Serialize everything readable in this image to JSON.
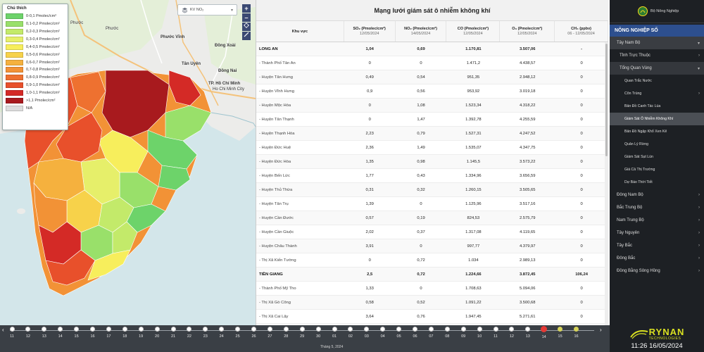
{
  "map": {
    "layer_select": "KV NO₂",
    "zoom_in": "+",
    "zoom_out": "–",
    "city_labels": [
      "Phước Vĩnh",
      "Đồng Xoài",
      "Tân Uyên",
      "Đồng Nai",
      "TP. Hồ Chí Minh",
      "Ho Chi Minh City",
      "Phước",
      "Phước"
    ],
    "legend": {
      "title": "Chú thích",
      "items": [
        {
          "label": "0-0,1 Pmolec/cm²",
          "color": "#6dd36a"
        },
        {
          "label": "0,1-0,2 Pmolec/cm²",
          "color": "#99e06a"
        },
        {
          "label": "0,2-0,3 Pmolec/cm²",
          "color": "#c3ea6a"
        },
        {
          "label": "0,3-0,4 Pmolec/cm²",
          "color": "#e6ef6a"
        },
        {
          "label": "0,4-0,5 Pmolec/cm²",
          "color": "#f7ee5c"
        },
        {
          "label": "0,5-0,6 Pmolec/cm²",
          "color": "#f7d24a"
        },
        {
          "label": "0,6-0,7 Pmolec/cm²",
          "color": "#f5b13e"
        },
        {
          "label": "0,7-0,8 Pmolec/cm²",
          "color": "#f29236"
        },
        {
          "label": "0,8-0,9 Pmolec/cm²",
          "color": "#ee7130"
        },
        {
          "label": "0,9-1,0 Pmolec/cm²",
          "color": "#e8502b"
        },
        {
          "label": "1,0-1,1 Pmolec/cm²",
          "color": "#d42a26"
        },
        {
          "label": ">1,1 Pmolec/cm²",
          "color": "#a81a1e"
        },
        {
          "label": "N/A",
          "color": "#dddddd"
        }
      ]
    }
  },
  "table": {
    "title": "Mạng lưới giám sát ô nhiễm không khí",
    "headers": [
      {
        "label": "Khu vực",
        "date": ""
      },
      {
        "label": "SO₂ (Pmolec/cm²)",
        "date": "12/05/2024"
      },
      {
        "label": "NO₂ (Pmolec/cm²)",
        "date": "14/05/2024"
      },
      {
        "label": "CO (Pmolec/cm²)",
        "date": "12/05/2024"
      },
      {
        "label": "O₃ (Pmolec/cm²)",
        "date": "12/05/2024"
      },
      {
        "label": "CH₄ (ppbv)",
        "date": "06 - 12/05/2024"
      }
    ],
    "rows": [
      {
        "name": "LONG AN",
        "so2": "1,04",
        "no2": "0,69",
        "co": "1.170,81",
        "o3": "3.507,06",
        "ch4": "-",
        "province": true
      },
      {
        "name": "- Thành Phố Tân An",
        "so2": "0",
        "no2": "0",
        "co": "1.471,2",
        "o3": "4.438,57",
        "ch4": "0",
        "province": false
      },
      {
        "name": "- Huyện Tân Hưng",
        "so2": "0,49",
        "no2": "0,54",
        "co": "951,35",
        "o3": "2.948,12",
        "ch4": "0",
        "province": false
      },
      {
        "name": "- Huyện Vĩnh Hưng",
        "so2": "0,9",
        "no2": "0,56",
        "co": "953,92",
        "o3": "3.019,18",
        "ch4": "0",
        "province": false
      },
      {
        "name": "- Huyện Mộc Hóa",
        "so2": "0",
        "no2": "1,08",
        "co": "1.523,34",
        "o3": "4.318,22",
        "ch4": "0",
        "province": false
      },
      {
        "name": "- Huyện Tân Thạnh",
        "so2": "0",
        "no2": "1,47",
        "co": "1.392,78",
        "o3": "4.255,59",
        "ch4": "0",
        "province": false
      },
      {
        "name": "- Huyện Thạnh Hóa",
        "so2": "2,23",
        "no2": "0,79",
        "co": "1.527,31",
        "o3": "4.247,52",
        "ch4": "0",
        "province": false
      },
      {
        "name": "- Huyện Đức Huệ",
        "so2": "2,36",
        "no2": "1,49",
        "co": "1.535,07",
        "o3": "4.347,75",
        "ch4": "0",
        "province": false
      },
      {
        "name": "- Huyện Đức Hòa",
        "so2": "1,35",
        "no2": "0,98",
        "co": "1.145,5",
        "o3": "3.573,22",
        "ch4": "0",
        "province": false
      },
      {
        "name": "- Huyện Bến Lức",
        "so2": "1,77",
        "no2": "0,43",
        "co": "1.334,96",
        "o3": "3.656,59",
        "ch4": "0",
        "province": false
      },
      {
        "name": "- Huyện Thủ Thừa",
        "so2": "0,31",
        "no2": "0,32",
        "co": "1.260,15",
        "o3": "3.505,65",
        "ch4": "0",
        "province": false
      },
      {
        "name": "- Huyện Tân Trụ",
        "so2": "1,39",
        "no2": "0",
        "co": "1.125,96",
        "o3": "3.517,16",
        "ch4": "0",
        "province": false
      },
      {
        "name": "- Huyện Cần Đước",
        "so2": "0,57",
        "no2": "0,19",
        "co": "824,53",
        "o3": "2.575,79",
        "ch4": "0",
        "province": false
      },
      {
        "name": "- Huyện Cần Giuộc",
        "so2": "2,02",
        "no2": "0,37",
        "co": "1.317,08",
        "o3": "4.119,65",
        "ch4": "0",
        "province": false
      },
      {
        "name": "- Huyện Châu Thành",
        "so2": "3,91",
        "no2": "0",
        "co": "997,77",
        "o3": "4.379,97",
        "ch4": "0",
        "province": false
      },
      {
        "name": "- Thị Xã Kiến Tường",
        "so2": "0",
        "no2": "0,72",
        "co": "1.034",
        "o3": "2.989,13",
        "ch4": "0",
        "province": false
      },
      {
        "name": "TIỀN GIANG",
        "so2": "2,5",
        "no2": "0,72",
        "co": "1.224,66",
        "o3": "3.872,45",
        "ch4": "106,24",
        "province": true
      },
      {
        "name": "- Thành Phố Mỹ Tho",
        "so2": "1,33",
        "no2": "0",
        "co": "1.708,63",
        "o3": "5.094,06",
        "ch4": "0",
        "province": false
      },
      {
        "name": "- Thị Xã Gò Công",
        "so2": "0,58",
        "no2": "0,52",
        "co": "1.091,22",
        "o3": "3.500,68",
        "ch4": "0",
        "province": false
      },
      {
        "name": "- Thị Xã Cai Lậy",
        "so2": "3,64",
        "no2": "0,76",
        "co": "1.947,45",
        "o3": "5.271,61",
        "ch4": "0",
        "province": false
      }
    ]
  },
  "sidebar": {
    "ministry": "Bộ Nông Nghiệp",
    "section": "NÔNG NGHIỆP SỐ",
    "items": [
      {
        "label": "Tây Nam Bộ",
        "level": 1,
        "arrow": "▾",
        "state": "open"
      },
      {
        "label": "Tỉnh Trực Thuộc",
        "level": 2,
        "arrow": "›",
        "state": ""
      },
      {
        "label": "Tổng Quan Vùng",
        "level": 2,
        "arrow": "▾",
        "state": "open2"
      },
      {
        "label": "Quan Trắc Nước",
        "level": 3,
        "arrow": "",
        "state": ""
      },
      {
        "label": "Côn Trùng",
        "level": 3,
        "arrow": "›",
        "state": ""
      },
      {
        "label": "Bản Đồ Canh Tác Lúa",
        "level": 3,
        "arrow": "",
        "state": ""
      },
      {
        "label": "Giám Sát Ô Nhiễm Không Khí",
        "level": 3,
        "arrow": "",
        "state": "active"
      },
      {
        "label": "Bản Đồ Ngập Khổ Xen Kẽ",
        "level": 3,
        "arrow": "",
        "state": ""
      },
      {
        "label": "Quản Lý Rừng",
        "level": 3,
        "arrow": "",
        "state": ""
      },
      {
        "label": "Giám Sát Sụt Lún",
        "level": 3,
        "arrow": "",
        "state": ""
      },
      {
        "label": "Giá Cả Thị Trường",
        "level": 3,
        "arrow": "",
        "state": ""
      },
      {
        "label": "Dự Báo Thời Tiết",
        "level": 3,
        "arrow": "",
        "state": ""
      },
      {
        "label": "Đông Nam Bộ",
        "level": 1,
        "arrow": "›",
        "state": ""
      },
      {
        "label": "Bắc Trung Bộ",
        "level": 1,
        "arrow": "›",
        "state": ""
      },
      {
        "label": "Nam Trung Bộ",
        "level": 1,
        "arrow": "›",
        "state": ""
      },
      {
        "label": "Tây Nguyên",
        "level": 1,
        "arrow": "›",
        "state": ""
      },
      {
        "label": "Tây Bắc",
        "level": 1,
        "arrow": "›",
        "state": ""
      },
      {
        "label": "Đông Bắc",
        "level": 1,
        "arrow": "›",
        "state": ""
      },
      {
        "label": "Đồng Bằng Sông Hồng",
        "level": 1,
        "arrow": "›",
        "state": ""
      }
    ],
    "brand_name": "RYNAN",
    "brand_sub": "TECHNOLOGIES",
    "clock": "11:26 16/05/2024"
  },
  "timeline": {
    "month_label": "Tháng 5, 2024",
    "prev": "‹",
    "next": "›",
    "days": [
      {
        "day": "11",
        "state": ""
      },
      {
        "day": "12",
        "state": ""
      },
      {
        "day": "13",
        "state": ""
      },
      {
        "day": "14",
        "state": ""
      },
      {
        "day": "15",
        "state": ""
      },
      {
        "day": "16",
        "state": ""
      },
      {
        "day": "17",
        "state": ""
      },
      {
        "day": "18",
        "state": ""
      },
      {
        "day": "19",
        "state": ""
      },
      {
        "day": "20",
        "state": ""
      },
      {
        "day": "21",
        "state": ""
      },
      {
        "day": "22",
        "state": ""
      },
      {
        "day": "23",
        "state": ""
      },
      {
        "day": "24",
        "state": ""
      },
      {
        "day": "25",
        "state": ""
      },
      {
        "day": "26",
        "state": ""
      },
      {
        "day": "27",
        "state": ""
      },
      {
        "day": "28",
        "state": ""
      },
      {
        "day": "29",
        "state": ""
      },
      {
        "day": "30",
        "state": ""
      },
      {
        "day": "01",
        "state": ""
      },
      {
        "day": "02",
        "state": ""
      },
      {
        "day": "03",
        "state": ""
      },
      {
        "day": "04",
        "state": ""
      },
      {
        "day": "05",
        "state": ""
      },
      {
        "day": "06",
        "state": ""
      },
      {
        "day": "07",
        "state": ""
      },
      {
        "day": "08",
        "state": ""
      },
      {
        "day": "09",
        "state": ""
      },
      {
        "day": "10",
        "state": ""
      },
      {
        "day": "11",
        "state": ""
      },
      {
        "day": "12",
        "state": ""
      },
      {
        "day": "13",
        "state": ""
      },
      {
        "day": "14",
        "state": "red"
      },
      {
        "day": "15",
        "state": "yellow"
      },
      {
        "day": "16",
        "state": "yellow"
      }
    ]
  }
}
